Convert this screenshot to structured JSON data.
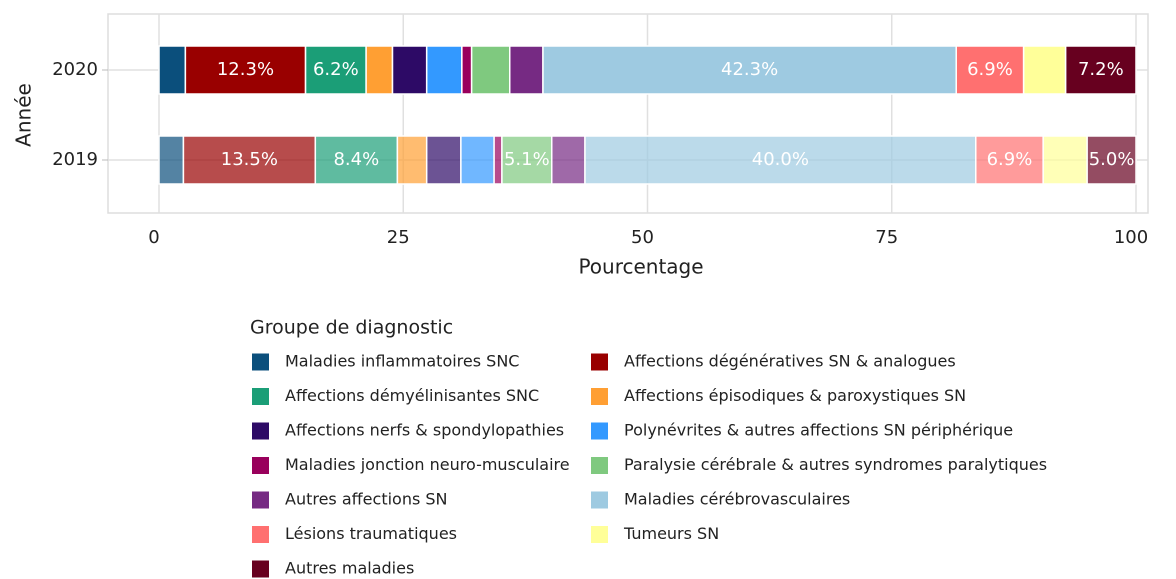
{
  "chart_data": {
    "type": "stacked_barh",
    "x_label": "Pourcentage",
    "y_label": "Année",
    "legend_title": "Groupe de diagnostic",
    "categories": [
      "2020",
      "2019"
    ],
    "category_opacity": [
      1,
      0.7
    ],
    "xlim": [
      0,
      100
    ],
    "xticks": [
      0,
      25,
      50,
      75,
      100
    ],
    "grid": true,
    "series": [
      {
        "name": "Maladies inflammatoires SNC",
        "color": "#0b4f7c",
        "values": [
          2.7,
          2.5
        ],
        "value_labels": [
          null,
          null
        ]
      },
      {
        "name": "Affections dégénératives SN & analogues",
        "color": "#990000",
        "values": [
          12.3,
          13.5
        ],
        "value_labels": [
          "12.3%",
          "13.5%"
        ]
      },
      {
        "name": "Affections démyélinisantes SNC",
        "color": "#1b9e77",
        "values": [
          6.2,
          8.4
        ],
        "value_labels": [
          "6.2%",
          "8.4%"
        ]
      },
      {
        "name": "Affections épisodiques & paroxystiques SN",
        "color": "#ff9f33",
        "values": [
          2.7,
          3.0
        ],
        "value_labels": [
          null,
          null
        ]
      },
      {
        "name": "Affections nerfs & spondylopathies",
        "color": "#2d0a66",
        "values": [
          3.5,
          3.5
        ],
        "value_labels": [
          null,
          null
        ]
      },
      {
        "name": "Polynévrites & autres affections SN périphérique",
        "color": "#3399ff",
        "values": [
          3.6,
          3.4
        ],
        "value_labels": [
          null,
          null
        ]
      },
      {
        "name": "Maladies jonction neuro-musculaire",
        "color": "#99005c",
        "values": [
          1.0,
          0.8
        ],
        "value_labels": [
          null,
          null
        ]
      },
      {
        "name": "Paralysie cérébrale & autres syndromes paralytiques",
        "color": "#7fc97f",
        "values": [
          3.9,
          5.1
        ],
        "value_labels": [
          null,
          "5.1%"
        ]
      },
      {
        "name": "Autres affections SN",
        "color": "#762a83",
        "values": [
          3.4,
          3.4
        ],
        "value_labels": [
          null,
          null
        ]
      },
      {
        "name": "Maladies cérébrovasculaires",
        "color": "#9ecae1",
        "values": [
          42.3,
          40.0
        ],
        "value_labels": [
          "42.3%",
          "40.0%"
        ]
      },
      {
        "name": "Lésions traumatiques",
        "color": "#ff7070",
        "values": [
          6.9,
          6.9
        ],
        "value_labels": [
          "6.9%",
          "6.9%"
        ]
      },
      {
        "name": "Tumeurs SN",
        "color": "#ffff99",
        "values": [
          4.3,
          4.5
        ],
        "value_labels": [
          null,
          null
        ]
      },
      {
        "name": "Autres maladies",
        "color": "#67001f",
        "values": [
          7.2,
          5.0
        ],
        "value_labels": [
          "7.2%",
          "5.0%"
        ]
      }
    ]
  }
}
